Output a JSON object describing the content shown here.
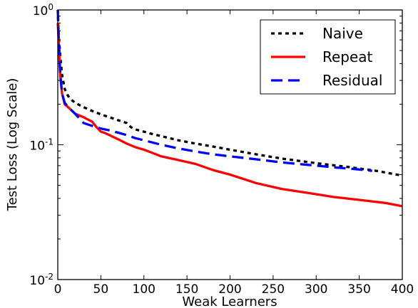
{
  "chart_data": {
    "type": "line",
    "xlabel": "Weak Learners",
    "ylabel": "Test Loss (Log Scale)",
    "xlim": [
      0,
      400
    ],
    "ylim": [
      0.01,
      1
    ],
    "yscale": "log",
    "grid": false,
    "legend_position": "top-right",
    "x_ticks": [
      0,
      50,
      100,
      150,
      200,
      250,
      300,
      350,
      400
    ],
    "x_tick_labels": [
      "0",
      "50",
      "100",
      "150",
      "200",
      "250",
      "300",
      "350",
      "400"
    ],
    "y_ticks": [
      0.01,
      0.1,
      1
    ],
    "y_tick_labels": [
      {
        "base": "10",
        "exp": "-2"
      },
      {
        "base": "10",
        "exp": "-1"
      },
      {
        "base": "10",
        "exp": "0"
      }
    ],
    "series": [
      {
        "name": "Naive",
        "color": "#000000",
        "style": "dotted",
        "x": [
          0,
          1,
          3,
          5,
          8,
          12,
          16,
          20,
          30,
          40,
          50,
          60,
          70,
          80,
          85,
          90,
          100,
          110,
          120,
          140,
          160,
          180,
          200,
          230,
          260,
          300,
          340,
          370,
          400
        ],
        "y": [
          1.0,
          0.65,
          0.45,
          0.33,
          0.26,
          0.23,
          0.215,
          0.205,
          0.19,
          0.178,
          0.168,
          0.16,
          0.152,
          0.145,
          0.135,
          0.13,
          0.125,
          0.12,
          0.116,
          0.108,
          0.102,
          0.097,
          0.092,
          0.085,
          0.079,
          0.073,
          0.068,
          0.064,
          0.059
        ]
      },
      {
        "name": "Repeat",
        "color": "#ff0000",
        "style": "solid",
        "x": [
          0,
          1,
          2,
          3,
          5,
          8,
          12,
          16,
          20,
          30,
          40,
          45,
          50,
          55,
          60,
          70,
          80,
          90,
          100,
          110,
          120,
          140,
          160,
          180,
          200,
          230,
          260,
          290,
          320,
          350,
          380,
          400
        ],
        "y": [
          0.8,
          0.6,
          0.42,
          0.32,
          0.24,
          0.2,
          0.19,
          0.18,
          0.17,
          0.16,
          0.148,
          0.135,
          0.125,
          0.122,
          0.118,
          0.11,
          0.102,
          0.096,
          0.092,
          0.087,
          0.082,
          0.077,
          0.072,
          0.065,
          0.06,
          0.052,
          0.047,
          0.044,
          0.041,
          0.039,
          0.037,
          0.035
        ]
      },
      {
        "name": "Residual",
        "color": "#0000ff",
        "style": "dashed",
        "x": [
          0,
          1,
          2,
          3,
          5,
          8,
          12,
          16,
          20,
          30,
          40,
          50,
          60,
          70,
          80,
          90,
          100,
          120,
          140,
          160,
          180,
          200,
          230,
          260,
          290,
          320,
          345,
          365
        ],
        "y": [
          1.0,
          0.65,
          0.45,
          0.33,
          0.24,
          0.205,
          0.19,
          0.18,
          0.17,
          0.145,
          0.138,
          0.132,
          0.128,
          0.123,
          0.118,
          0.112,
          0.108,
          0.1,
          0.094,
          0.089,
          0.085,
          0.082,
          0.078,
          0.074,
          0.071,
          0.068,
          0.066,
          0.064
        ]
      }
    ]
  }
}
